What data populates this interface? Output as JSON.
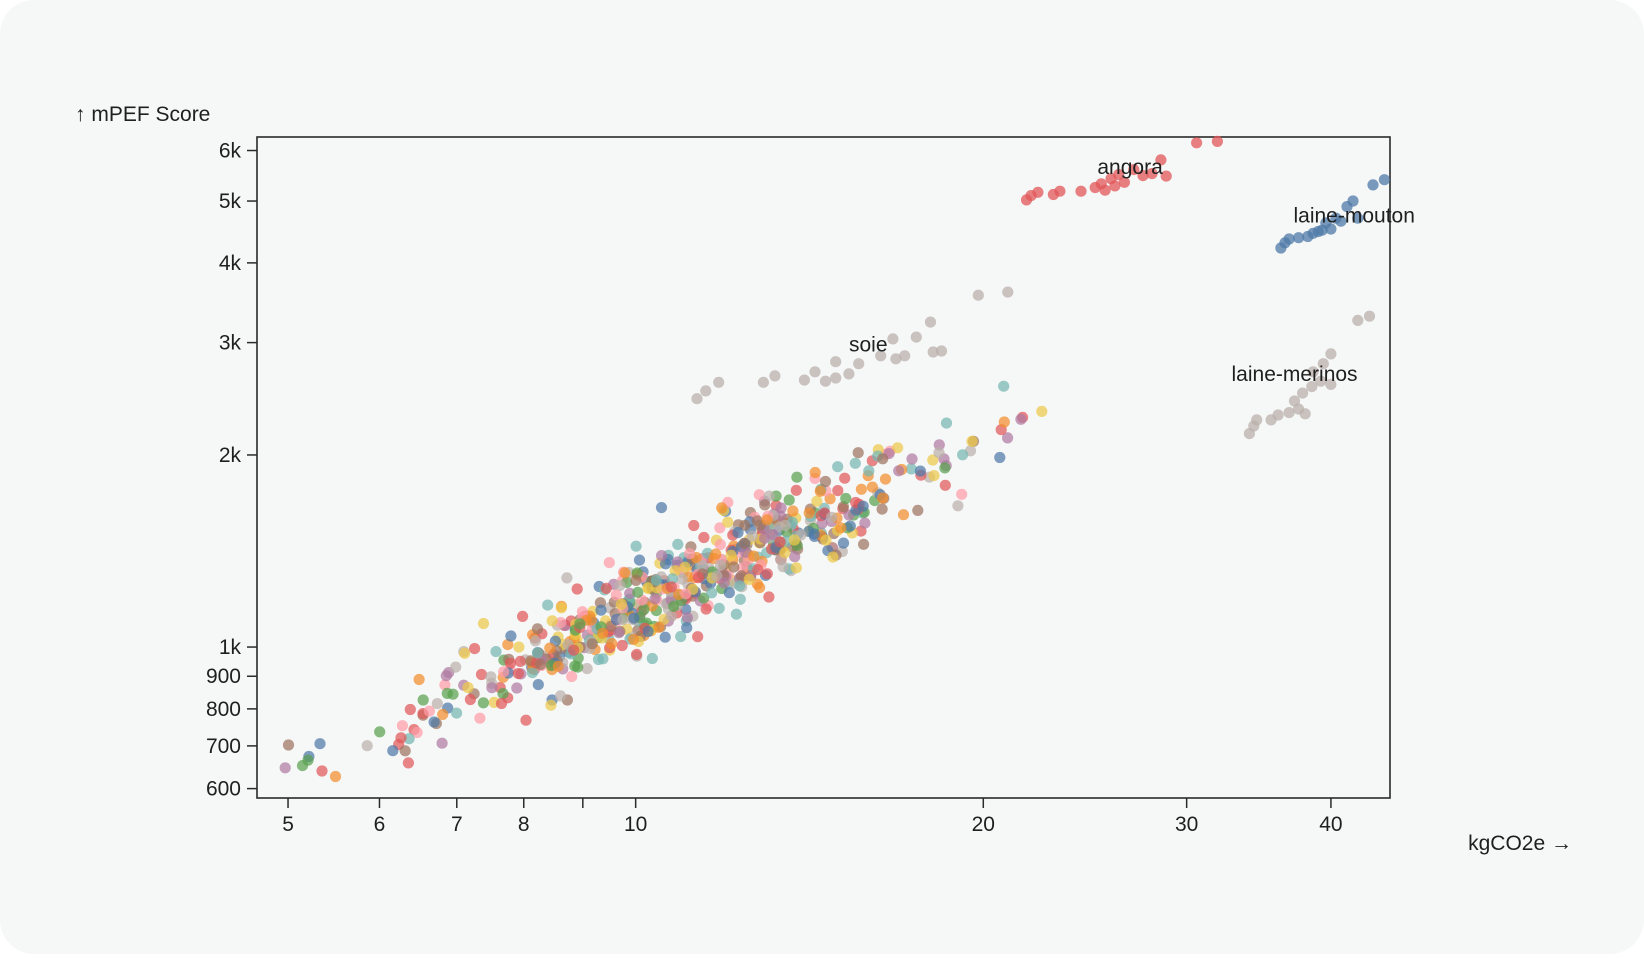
{
  "chart_data": {
    "type": "scatter",
    "title": "",
    "xlabel": "kgCO2e →",
    "ylabel": "↑ mPEF Score",
    "xscale": "log",
    "yscale": "log",
    "xlim": [
      4.7,
      45
    ],
    "ylim": [
      580,
      6300
    ],
    "grid": false,
    "x_ticks": [
      {
        "value": 5,
        "label": "5"
      },
      {
        "value": 6,
        "label": "6"
      },
      {
        "value": 7,
        "label": "7"
      },
      {
        "value": 8,
        "label": "8"
      },
      {
        "value": 9,
        "label": ""
      },
      {
        "value": 10,
        "label": "10"
      },
      {
        "value": 20,
        "label": "20"
      },
      {
        "value": 30,
        "label": "30"
      },
      {
        "value": 40,
        "label": "40"
      }
    ],
    "y_ticks": [
      {
        "value": 600,
        "label": "600"
      },
      {
        "value": 700,
        "label": "700"
      },
      {
        "value": 800,
        "label": "800"
      },
      {
        "value": 900,
        "label": "900"
      },
      {
        "value": 1000,
        "label": "1k"
      },
      {
        "value": 2000,
        "label": "2k"
      },
      {
        "value": 3000,
        "label": "3k"
      },
      {
        "value": 4000,
        "label": "4k"
      },
      {
        "value": 5000,
        "label": "5k"
      },
      {
        "value": 6000,
        "label": "6k"
      }
    ],
    "palette": [
      "#4e79a7",
      "#f28e2c",
      "#e15759",
      "#76b7b2",
      "#59a14f",
      "#edc949",
      "#af7aa1",
      "#ff9da7",
      "#9c755f",
      "#bab0ab"
    ],
    "series": [
      {
        "name": "angora",
        "color": "#e15759",
        "points": [
          [
            21.8,
            5020
          ],
          [
            22.0,
            5100
          ],
          [
            22.3,
            5160
          ],
          [
            23.0,
            5120
          ],
          [
            23.3,
            5180
          ],
          [
            24.3,
            5180
          ],
          [
            25.0,
            5250
          ],
          [
            25.3,
            5320
          ],
          [
            25.5,
            5200
          ],
          [
            25.8,
            5420
          ],
          [
            26.0,
            5280
          ],
          [
            26.2,
            5500
          ],
          [
            26.5,
            5350
          ],
          [
            27.0,
            5600
          ],
          [
            27.5,
            5480
          ],
          [
            28.0,
            5520
          ],
          [
            28.5,
            5800
          ],
          [
            28.8,
            5470
          ],
          [
            30.6,
            6170
          ],
          [
            31.9,
            6200
          ]
        ]
      },
      {
        "name": "laine-mouton",
        "color": "#4e79a7",
        "points": [
          [
            36.2,
            4220
          ],
          [
            36.5,
            4300
          ],
          [
            36.8,
            4360
          ],
          [
            37.5,
            4380
          ],
          [
            38.2,
            4400
          ],
          [
            38.6,
            4450
          ],
          [
            39.0,
            4480
          ],
          [
            39.3,
            4500
          ],
          [
            39.6,
            4620
          ],
          [
            40.0,
            4520
          ],
          [
            40.4,
            4700
          ],
          [
            40.8,
            4650
          ],
          [
            41.3,
            4900
          ],
          [
            41.8,
            5000
          ],
          [
            42.2,
            4700
          ],
          [
            43.5,
            5300
          ],
          [
            44.5,
            5400
          ]
        ]
      },
      {
        "name": "soie",
        "color": "#bab0ab",
        "points": [
          [
            11.3,
            2450
          ],
          [
            11.5,
            2520
          ],
          [
            11.8,
            2600
          ],
          [
            12.9,
            2600
          ],
          [
            13.2,
            2660
          ],
          [
            14.0,
            2620
          ],
          [
            14.3,
            2700
          ],
          [
            14.6,
            2610
          ],
          [
            14.9,
            2640
          ],
          [
            15.3,
            2680
          ],
          [
            14.9,
            2800
          ],
          [
            15.6,
            2780
          ],
          [
            16.3,
            2860
          ],
          [
            16.8,
            2830
          ],
          [
            17.1,
            2860
          ],
          [
            16.7,
            3040
          ],
          [
            17.5,
            3060
          ],
          [
            18.1,
            2900
          ],
          [
            18.4,
            2910
          ],
          [
            18.0,
            3230
          ],
          [
            19.8,
            3560
          ],
          [
            21.0,
            3600
          ]
        ]
      },
      {
        "name": "laine-merinos",
        "color": "#bab0ab",
        "points": [
          [
            34.0,
            2160
          ],
          [
            34.3,
            2220
          ],
          [
            34.5,
            2270
          ],
          [
            35.5,
            2270
          ],
          [
            36.0,
            2310
          ],
          [
            36.8,
            2330
          ],
          [
            37.5,
            2360
          ],
          [
            38.0,
            2320
          ],
          [
            37.2,
            2430
          ],
          [
            37.8,
            2500
          ],
          [
            38.5,
            2560
          ],
          [
            39.2,
            2610
          ],
          [
            40.0,
            2580
          ],
          [
            38.6,
            2700
          ],
          [
            39.4,
            2780
          ],
          [
            40.0,
            2880
          ],
          [
            42.2,
            3250
          ],
          [
            43.2,
            3300
          ]
        ]
      }
    ],
    "annotations": [
      {
        "text": "angora",
        "x": 26.8,
        "y": 5650
      },
      {
        "text": "laine-mouton",
        "x": 41.9,
        "y": 4750
      },
      {
        "text": "soie",
        "x": 15.9,
        "y": 2980
      },
      {
        "text": "laine-merinos",
        "x": 37.2,
        "y": 2680
      }
    ],
    "main_cloud": {
      "description": "~650 products, colored by category palette, following a log-linear trend",
      "count": 650,
      "x_range": [
        4.7,
        23
      ],
      "trend": {
        "x0": 4.7,
        "y0": 590,
        "x1": 22.5,
        "y1": 2330
      },
      "log_spread": 0.085
    }
  }
}
